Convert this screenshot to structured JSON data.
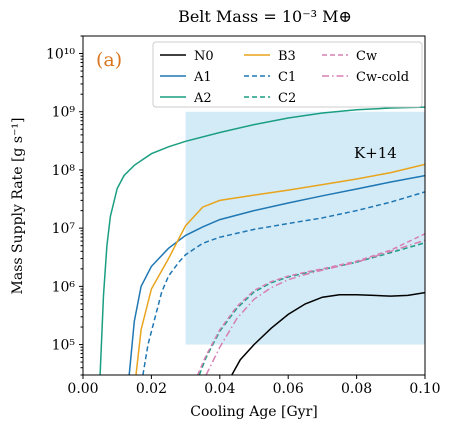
{
  "chart_data": {
    "type": "line",
    "title": "Belt Mass = 10⁻³ M⊕",
    "panel_label": "(a)",
    "panel_label_color": "#d9751f",
    "xlabel": "Cooling Age [Gyr]",
    "ylabel": "Mass Supply Rate [g s⁻¹]",
    "xlim": [
      0.0,
      0.1
    ],
    "ylim": [
      30000,
      20000000000
    ],
    "yscale": "log",
    "x_ticks": [
      0.0,
      0.02,
      0.04,
      0.06,
      0.08,
      0.1
    ],
    "x_tick_labels": [
      "0.00",
      "0.02",
      "0.04",
      "0.06",
      "0.08",
      "0.10"
    ],
    "y_ticks": [
      100000,
      1000000,
      10000000,
      100000000,
      1000000000,
      10000000000
    ],
    "y_tick_labels": [
      "10⁵",
      "10⁶",
      "10⁷",
      "10⁸",
      "10⁹",
      "10¹⁰"
    ],
    "grid": false,
    "legend_position": "top-right",
    "shaded_region": {
      "label": "K+14",
      "x": [
        0.03,
        0.1
      ],
      "y": [
        100000,
        1000000000
      ],
      "color": "#a8d8f0"
    },
    "series": [
      {
        "name": "N0",
        "color": "#000000",
        "dash": "solid",
        "x": [
          0.0435,
          0.046,
          0.05,
          0.055,
          0.06,
          0.065,
          0.07,
          0.075,
          0.08,
          0.085,
          0.09,
          0.095,
          0.1
        ],
        "y": [
          30000,
          55000,
          100000,
          190000,
          330000,
          500000,
          650000,
          720000,
          720000,
          700000,
          680000,
          700000,
          780000
        ]
      },
      {
        "name": "A1",
        "color": "#1f77b4",
        "dash": "solid",
        "x": [
          0.0135,
          0.015,
          0.017,
          0.02,
          0.025,
          0.03,
          0.035,
          0.04,
          0.05,
          0.06,
          0.07,
          0.08,
          0.09,
          0.1
        ],
        "y": [
          30000,
          250000,
          1000000,
          2200000,
          4500000,
          7500000,
          10500000,
          14000000,
          20000000,
          27000000,
          36000000,
          47000000,
          62000000,
          80000000
        ]
      },
      {
        "name": "A2",
        "color": "#1a9e82",
        "dash": "solid",
        "x": [
          0.005,
          0.006,
          0.007,
          0.008,
          0.01,
          0.012,
          0.015,
          0.02,
          0.025,
          0.03,
          0.04,
          0.05,
          0.06,
          0.07,
          0.08,
          0.09,
          0.1
        ],
        "y": [
          30000,
          700000,
          5000000,
          16000000,
          48000000,
          80000000,
          120000000,
          190000000,
          250000000,
          310000000,
          440000000,
          600000000,
          780000000,
          950000000,
          1080000000,
          1160000000,
          1200000000
        ]
      },
      {
        "name": "B3",
        "color": "#e8a41c",
        "dash": "solid",
        "x": [
          0.0155,
          0.017,
          0.02,
          0.025,
          0.03,
          0.035,
          0.04,
          0.05,
          0.06,
          0.07,
          0.08,
          0.09,
          0.1
        ],
        "y": [
          30000,
          180000,
          900000,
          3000000,
          11000000,
          23000000,
          30000000,
          37000000,
          45000000,
          56000000,
          70000000,
          90000000,
          125000000
        ]
      },
      {
        "name": "C1",
        "color": "#1f77b4",
        "dash": "dashed",
        "x": [
          0.0175,
          0.019,
          0.021,
          0.023,
          0.025,
          0.028,
          0.03,
          0.035,
          0.04,
          0.05,
          0.06,
          0.07,
          0.08,
          0.09,
          0.1
        ],
        "y": [
          30000,
          100000,
          280000,
          800000,
          1500000,
          2600000,
          3500000,
          5500000,
          7000000,
          9500000,
          12000000,
          15000000,
          20000000,
          28000000,
          42000000
        ]
      },
      {
        "name": "C2",
        "color": "#1a9e82",
        "dash": "dashed",
        "x": [
          0.034,
          0.036,
          0.04,
          0.045,
          0.05,
          0.055,
          0.06,
          0.065,
          0.07,
          0.08,
          0.09,
          0.1
        ],
        "y": [
          30000,
          60000,
          170000,
          420000,
          800000,
          1150000,
          1450000,
          1700000,
          1950000,
          2600000,
          3800000,
          5600000
        ]
      },
      {
        "name": "Cw",
        "color": "#d77fb4",
        "dash": "dashed",
        "x": [
          0.0335,
          0.036,
          0.04,
          0.045,
          0.05,
          0.055,
          0.06,
          0.065,
          0.07,
          0.08,
          0.09,
          0.1
        ],
        "y": [
          30000,
          65000,
          180000,
          450000,
          850000,
          1200000,
          1500000,
          1750000,
          2000000,
          2700000,
          4200000,
          8000000
        ]
      },
      {
        "name": "Cw-cold",
        "color": "#d77fb4",
        "dash": "dashdot",
        "x": [
          0.036,
          0.04,
          0.045,
          0.05,
          0.055,
          0.06,
          0.065,
          0.07,
          0.08,
          0.09,
          0.1
        ],
        "y": [
          30000,
          90000,
          280000,
          600000,
          950000,
          1300000,
          1600000,
          1900000,
          2600000,
          4000000,
          6200000
        ]
      }
    ]
  }
}
